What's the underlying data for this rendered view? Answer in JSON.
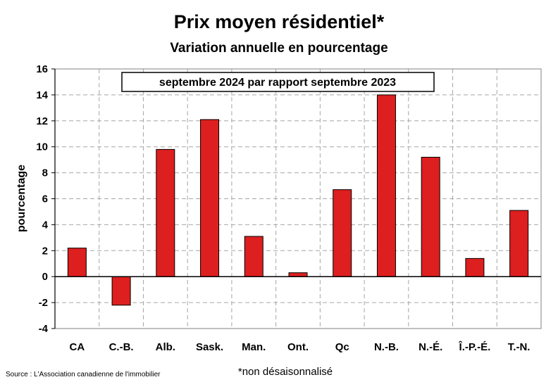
{
  "chart_data": {
    "type": "bar",
    "title": "Prix moyen résidentiel*",
    "subtitle": "Variation annuelle en pourcentage",
    "annotation": "septembre 2024 par rapport septembre 2023",
    "ylabel": "pourcentage",
    "xlabel": "",
    "categories": [
      "CA",
      "C.-B.",
      "Alb.",
      "Sask.",
      "Man.",
      "Ont.",
      "Qc",
      "N.-B.",
      "N.-É.",
      "Î.-P.-É.",
      "T.-N."
    ],
    "values": [
      2.2,
      -2.2,
      9.8,
      12.1,
      3.1,
      0.3,
      6.7,
      14.0,
      9.2,
      1.4,
      5.1
    ],
    "ylim": [
      -4,
      16
    ],
    "yticks": [
      -4,
      -2,
      0,
      2,
      4,
      6,
      8,
      10,
      12,
      14,
      16
    ],
    "grid": true,
    "bar_color": "#dd1f1f",
    "legend": "none"
  },
  "footer": {
    "source": "Source : L'Association canadienne de l'immobilier",
    "note": "*non désaisonnalisé"
  }
}
